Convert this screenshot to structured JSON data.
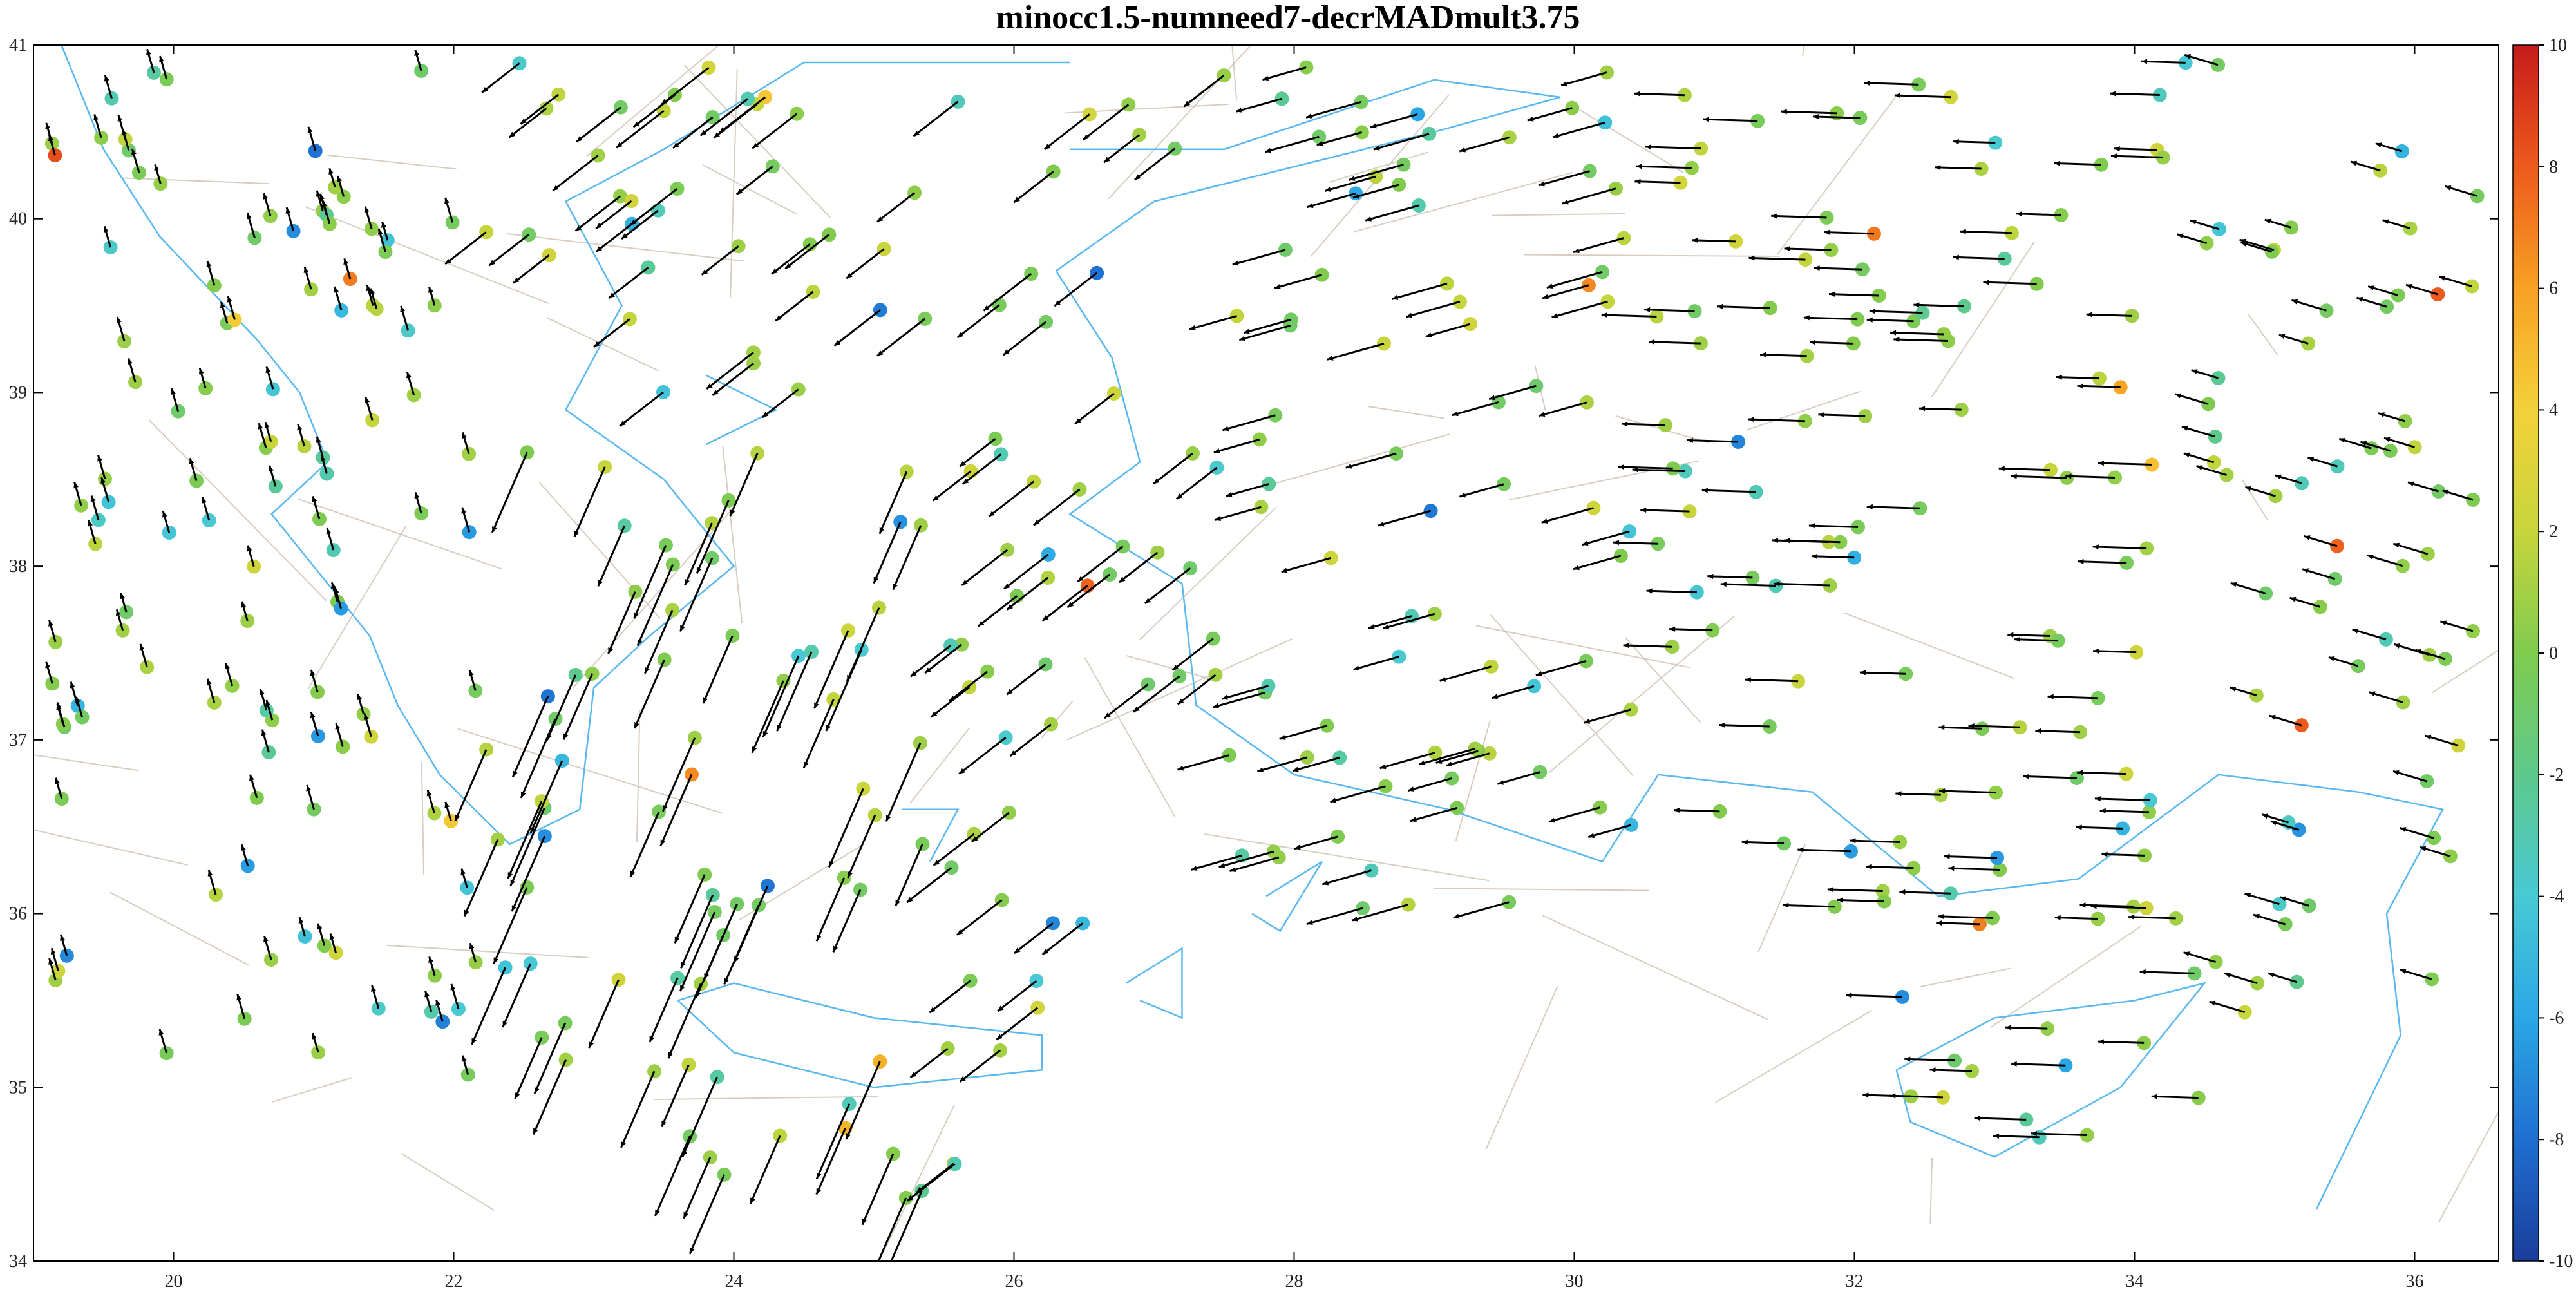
{
  "title": "minocc1.5-numneed7-decrMADmult3.75",
  "map_extent": {
    "lon": [
      19,
      36.6
    ],
    "lat": [
      34,
      41
    ]
  },
  "x_ticks": [
    {
      "value": 20,
      "label": "20"
    },
    {
      "value": 22,
      "label": "22"
    },
    {
      "value": 24,
      "label": "24"
    },
    {
      "value": 26,
      "label": "26"
    },
    {
      "value": 28,
      "label": "28"
    },
    {
      "value": 30,
      "label": "30"
    },
    {
      "value": 32,
      "label": "32"
    },
    {
      "value": 34,
      "label": "34"
    },
    {
      "value": 36,
      "label": "36"
    }
  ],
  "y_ticks": [
    {
      "value": 34,
      "label": "34"
    },
    {
      "value": 35,
      "label": "35"
    },
    {
      "value": 36,
      "label": "36"
    },
    {
      "value": 37,
      "label": "37"
    },
    {
      "value": 38,
      "label": "38"
    },
    {
      "value": 39,
      "label": "39"
    },
    {
      "value": 40,
      "label": "40"
    },
    {
      "value": 41,
      "label": "41"
    }
  ],
  "colorbar": {
    "min": -10,
    "max": 10,
    "colors": [
      "#1a3d9c",
      "#1f6fd0",
      "#2ba7e6",
      "#48c9d4",
      "#5ec98c",
      "#7fcb4e",
      "#c7d53c",
      "#f3d13a",
      "#f7a124",
      "#ed5a1c",
      "#c61b1b"
    ],
    "ticks": [
      {
        "value": 10,
        "label": "10"
      },
      {
        "value": 8,
        "label": "8"
      },
      {
        "value": 6,
        "label": "6"
      },
      {
        "value": 4,
        "label": "4"
      },
      {
        "value": 2,
        "label": "2"
      },
      {
        "value": 0,
        "label": "0"
      },
      {
        "value": -2,
        "label": "-2"
      },
      {
        "value": -4,
        "label": "-4"
      },
      {
        "value": -6,
        "label": "-6"
      },
      {
        "value": -8,
        "label": "-8"
      },
      {
        "value": -10,
        "label": "-10"
      }
    ]
  },
  "colors": {
    "arrow": "#000000",
    "coastline": "#5ab8f0",
    "faults": "#c8b8a8",
    "axes": "#000000"
  }
}
